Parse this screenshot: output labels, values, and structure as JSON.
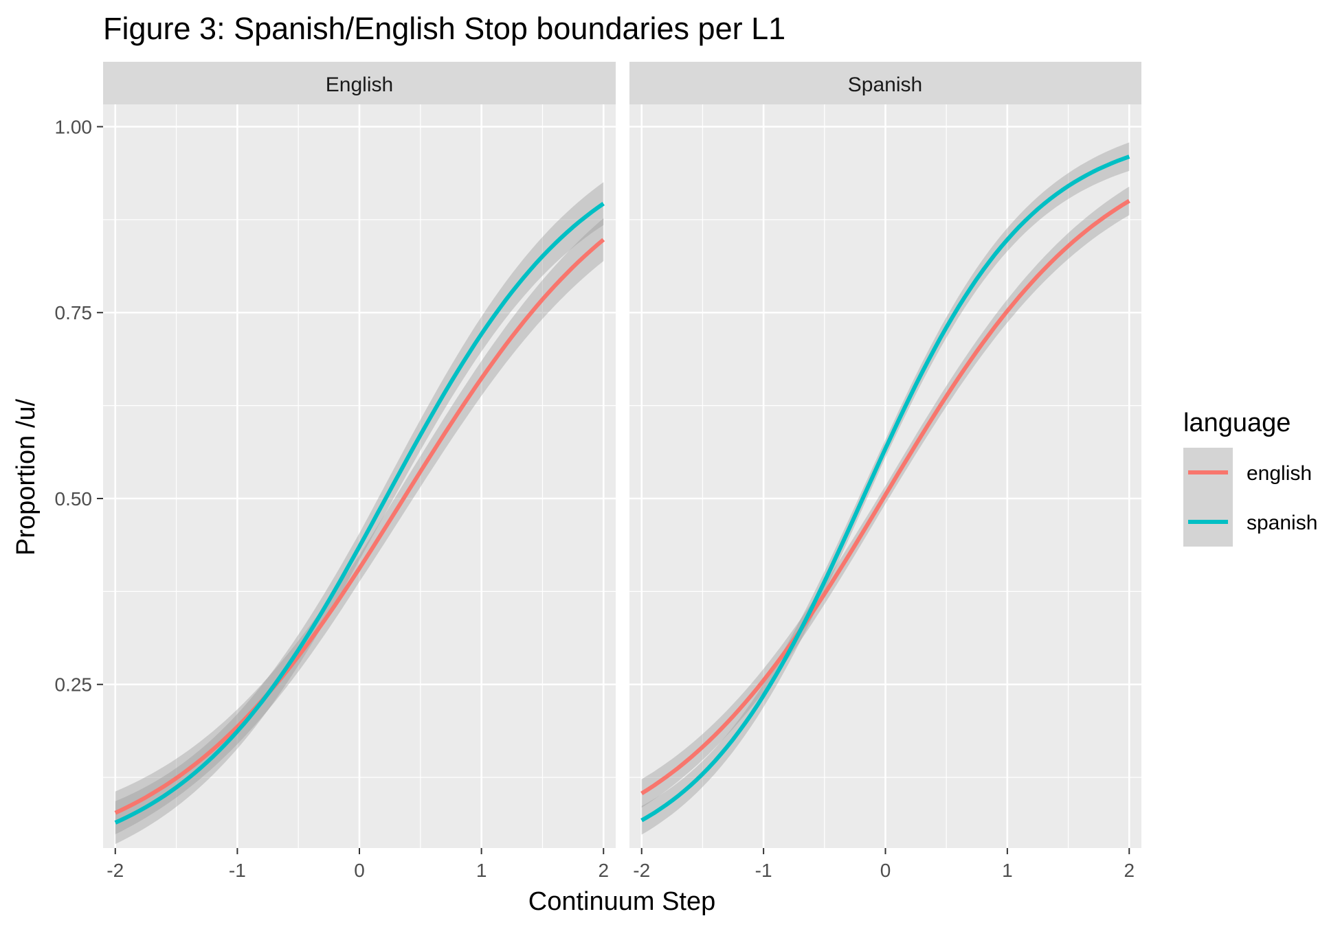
{
  "chart_data": {
    "type": "line",
    "title": "Figure 3: Spanish/English Stop boundaries per L1",
    "xlabel": "Continuum Step",
    "ylabel": "Proportion /u/",
    "xlim": [
      -2.1,
      2.1
    ],
    "ylim": [
      0.03,
      1.03
    ],
    "x_ticks": [
      -2,
      -1,
      0,
      1,
      2
    ],
    "x_tick_labels": [
      "-2",
      "-1",
      "0",
      "1",
      "2"
    ],
    "y_ticks": [
      0.25,
      0.5,
      0.75,
      1.0
    ],
    "y_tick_labels": [
      "0.25",
      "0.50",
      "0.75",
      "1.00"
    ],
    "grid": true,
    "ribbon": "confidence band (grey)",
    "legend": {
      "title": "language",
      "position": "right",
      "entries": [
        {
          "label": "english",
          "color": "#F8766D"
        },
        {
          "label": "spanish",
          "color": "#00BFC4"
        }
      ]
    },
    "panels": [
      {
        "facet_label": "English",
        "series": [
          {
            "name": "english",
            "color": "#F8766D",
            "logistic": {
              "b0": -0.38,
              "b1": 1.05
            },
            "band": 0.018,
            "x": [
              -2,
              -1,
              0,
              1,
              2
            ],
            "y": [
              0.08,
              0.19,
              0.41,
              0.66,
              0.85
            ]
          },
          {
            "name": "spanish",
            "color": "#00BFC4",
            "logistic": {
              "b0": -0.26,
              "b1": 1.21
            },
            "band": 0.018,
            "x": [
              -2,
              -1,
              0,
              1,
              2
            ],
            "y": [
              0.07,
              0.19,
              0.44,
              0.72,
              0.9
            ]
          }
        ]
      },
      {
        "facet_label": "Spanish",
        "series": [
          {
            "name": "english",
            "color": "#F8766D",
            "logistic": {
              "b0": 0.02,
              "b1": 1.09
            },
            "band": 0.012,
            "x": [
              -2,
              -1,
              0,
              1,
              2
            ],
            "y": [
              0.11,
              0.26,
              0.51,
              0.75,
              0.9
            ]
          },
          {
            "name": "spanish",
            "color": "#00BFC4",
            "logistic": {
              "b0": 0.27,
              "b1": 1.45
            },
            "band": 0.012,
            "x": [
              -2,
              -1,
              0,
              1,
              2
            ],
            "y": [
              0.08,
              0.24,
              0.57,
              0.84,
              0.95
            ]
          }
        ]
      }
    ]
  }
}
